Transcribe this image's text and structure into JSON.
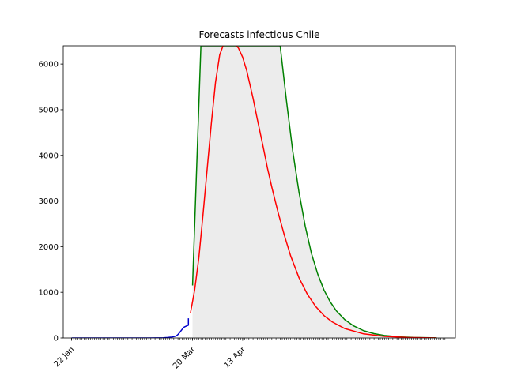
{
  "chart_data": {
    "type": "line",
    "title": "Forecasts infectious Chile",
    "xlabel": "",
    "ylabel": "",
    "ylim": [
      0,
      6400
    ],
    "yticks": [
      0,
      1000,
      2000,
      3000,
      4000,
      5000,
      6000
    ],
    "xticks_labeled": [
      {
        "date": "2020-01-22",
        "label": "22 Jan"
      },
      {
        "date": "2020-03-20",
        "label": "20 Mar"
      },
      {
        "date": "2020-04-13",
        "label": "13 Apr"
      }
    ],
    "xrange": [
      "2020-01-18",
      "2020-07-24"
    ],
    "minor_ticks_daily": true,
    "grid": false,
    "legend": "none",
    "colors": {
      "observed": "#0000cc",
      "forecast_central": "#ff0000",
      "forecast_upper": "#008000",
      "band_fill": "#ececec"
    },
    "series": [
      {
        "role": "observed",
        "x": [
          "2020-01-22",
          "2020-02-01",
          "2020-02-10",
          "2020-02-20",
          "2020-02-28",
          "2020-03-03",
          "2020-03-06",
          "2020-03-08",
          "2020-03-10",
          "2020-03-12",
          "2020-03-13",
          "2020-03-14",
          "2020-03-15",
          "2020-03-16",
          "2020-03-17",
          "2020-03-18",
          "2020-03-18"
        ],
        "y": [
          0,
          0,
          0,
          0,
          0,
          2,
          5,
          10,
          20,
          40,
          75,
          130,
          190,
          240,
          260,
          280,
          430
        ]
      },
      {
        "role": "forecast_central",
        "x": [
          "2020-03-19",
          "2020-03-21",
          "2020-03-23",
          "2020-03-25",
          "2020-03-27",
          "2020-03-29",
          "2020-03-31",
          "2020-04-02",
          "2020-04-04",
          "2020-04-06",
          "2020-04-08",
          "2020-04-10",
          "2020-04-11",
          "2020-04-13",
          "2020-04-15",
          "2020-04-18",
          "2020-04-20",
          "2020-04-23",
          "2020-04-25",
          "2020-04-27",
          "2020-04-30",
          "2020-05-03",
          "2020-05-06",
          "2020-05-10",
          "2020-05-14",
          "2020-05-18",
          "2020-05-22",
          "2020-05-26",
          "2020-06-01",
          "2020-06-10",
          "2020-06-20",
          "2020-07-01",
          "2020-07-15"
        ],
        "y": [
          550,
          1050,
          1750,
          2700,
          3700,
          4700,
          5600,
          6200,
          6450,
          6500,
          6450,
          6400,
          6350,
          6150,
          5850,
          5250,
          4800,
          4150,
          3700,
          3300,
          2750,
          2250,
          1800,
          1320,
          960,
          690,
          490,
          350,
          205,
          90,
          35,
          10,
          1
        ]
      },
      {
        "role": "forecast_upper",
        "x": [
          "2020-03-20",
          "2020-03-24",
          "2020-03-26",
          "2020-04-20",
          "2020-05-01",
          "2020-05-04",
          "2020-05-07",
          "2020-05-10",
          "2020-05-13",
          "2020-05-16",
          "2020-05-19",
          "2020-05-22",
          "2020-05-25",
          "2020-05-28",
          "2020-06-01",
          "2020-06-05",
          "2020-06-10",
          "2020-06-15",
          "2020-06-20",
          "2020-06-27",
          "2020-07-04",
          "2020-07-15"
        ],
        "y": [
          1150,
          6400,
          6400,
          6400,
          6400,
          5200,
          4100,
          3200,
          2450,
          1850,
          1400,
          1050,
          790,
          590,
          400,
          270,
          160,
          95,
          55,
          25,
          10,
          2
        ]
      }
    ]
  }
}
